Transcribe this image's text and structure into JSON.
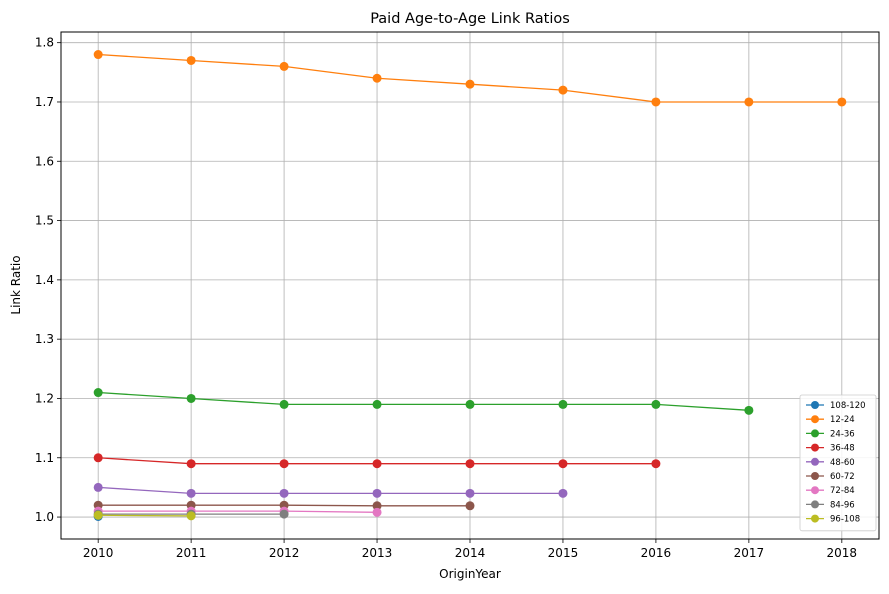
{
  "chart_data": {
    "type": "line",
    "title": "Paid Age-to-Age Link Ratios",
    "xlabel": "OriginYear",
    "ylabel": "Link Ratio",
    "x": [
      2010,
      2011,
      2012,
      2013,
      2014,
      2015,
      2016,
      2017,
      2018
    ],
    "xlim": [
      2009.6,
      2018.4
    ],
    "ylim": [
      0.963,
      1.818
    ],
    "yticks": [
      1.0,
      1.1,
      1.2,
      1.3,
      1.4,
      1.5,
      1.6,
      1.7,
      1.8
    ],
    "ytick_labels": [
      "1.0",
      "1.1",
      "1.2",
      "1.3",
      "1.4",
      "1.5",
      "1.6",
      "1.7",
      "1.8"
    ],
    "grid": true,
    "legend_position": "bottom-right",
    "series": [
      {
        "name": "108-120",
        "color": "#1f77b4",
        "x": [
          2010
        ],
        "values": [
          1.001
        ]
      },
      {
        "name": "12-24",
        "color": "#ff7f0e",
        "x": [
          2010,
          2011,
          2012,
          2013,
          2014,
          2015,
          2016,
          2017,
          2018
        ],
        "values": [
          1.78,
          1.77,
          1.76,
          1.74,
          1.73,
          1.72,
          1.7,
          1.7,
          1.7
        ]
      },
      {
        "name": "24-36",
        "color": "#2ca02c",
        "x": [
          2010,
          2011,
          2012,
          2013,
          2014,
          2015,
          2016,
          2017
        ],
        "values": [
          1.21,
          1.2,
          1.19,
          1.19,
          1.19,
          1.19,
          1.19,
          1.18
        ]
      },
      {
        "name": "36-48",
        "color": "#d62728",
        "x": [
          2010,
          2011,
          2012,
          2013,
          2014,
          2015,
          2016
        ],
        "values": [
          1.1,
          1.09,
          1.09,
          1.09,
          1.09,
          1.09,
          1.09
        ]
      },
      {
        "name": "48-60",
        "color": "#9467bd",
        "x": [
          2010,
          2011,
          2012,
          2013,
          2014,
          2015
        ],
        "values": [
          1.05,
          1.04,
          1.04,
          1.04,
          1.04,
          1.04
        ]
      },
      {
        "name": "60-72",
        "color": "#8c564b",
        "x": [
          2010,
          2011,
          2012,
          2013,
          2014
        ],
        "values": [
          1.02,
          1.02,
          1.02,
          1.019,
          1.019
        ]
      },
      {
        "name": "72-84",
        "color": "#e377c2",
        "x": [
          2010,
          2011,
          2012,
          2013
        ],
        "values": [
          1.01,
          1.01,
          1.01,
          1.008
        ]
      },
      {
        "name": "84-96",
        "color": "#7f7f7f",
        "x": [
          2010,
          2011,
          2012
        ],
        "values": [
          1.005,
          1.005,
          1.005
        ]
      },
      {
        "name": "96-108",
        "color": "#bcbd22",
        "x": [
          2010,
          2011
        ],
        "values": [
          1.003,
          1.002
        ]
      }
    ]
  }
}
